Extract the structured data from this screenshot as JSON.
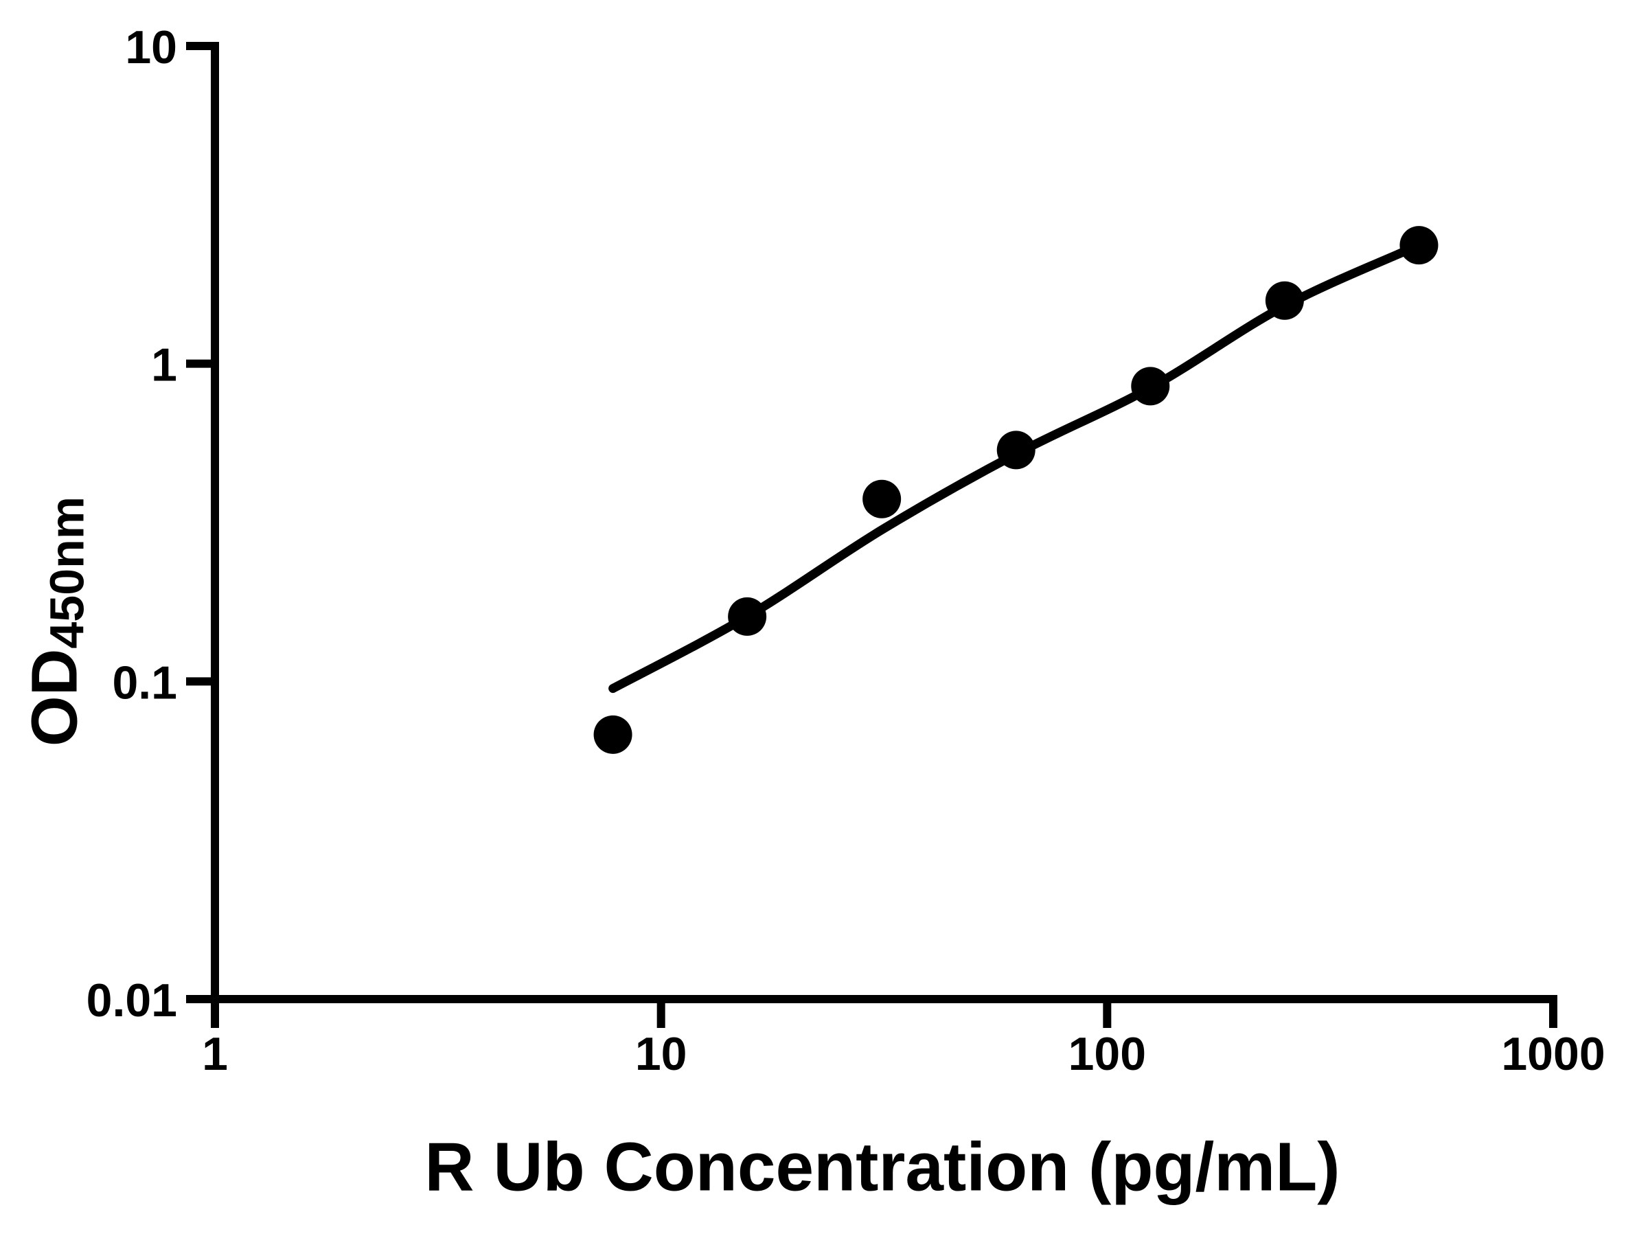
{
  "chart_data": {
    "type": "scatter",
    "title": "",
    "xlabel": "R Ub Concentration (pg/mL)",
    "ylabel_main": "OD",
    "ylabel_sub": "450nm",
    "x_scale": "log",
    "y_scale": "log",
    "xlim": [
      1,
      1000
    ],
    "ylim": [
      0.01,
      10
    ],
    "grid": false,
    "legend": false,
    "x_ticks": [
      {
        "value": 1,
        "label": "1"
      },
      {
        "value": 10,
        "label": "10"
      },
      {
        "value": 100,
        "label": "100"
      },
      {
        "value": 1000,
        "label": "1000"
      }
    ],
    "y_ticks": [
      {
        "value": 0.01,
        "label": "0.01"
      },
      {
        "value": 0.1,
        "label": "0.1"
      },
      {
        "value": 1,
        "label": "1"
      },
      {
        "value": 10,
        "label": "10"
      }
    ],
    "series": [
      {
        "name": "standard-points",
        "type": "scatter",
        "marker": "circle",
        "color": "#000000",
        "points": [
          {
            "x": 7.8,
            "y": 0.068
          },
          {
            "x": 15.6,
            "y": 0.16
          },
          {
            "x": 31.25,
            "y": 0.375
          },
          {
            "x": 62.5,
            "y": 0.535
          },
          {
            "x": 125,
            "y": 0.85
          },
          {
            "x": 250,
            "y": 1.58
          },
          {
            "x": 500,
            "y": 2.36
          }
        ]
      },
      {
        "name": "fit-curve",
        "type": "line",
        "color": "#000000",
        "points": [
          {
            "x": 7.8,
            "y": 0.095
          },
          {
            "x": 15.6,
            "y": 0.16
          },
          {
            "x": 31.25,
            "y": 0.3
          },
          {
            "x": 62.5,
            "y": 0.52
          },
          {
            "x": 125,
            "y": 0.84
          },
          {
            "x": 250,
            "y": 1.52
          },
          {
            "x": 500,
            "y": 2.36
          }
        ]
      }
    ],
    "colors": {
      "foreground": "#000000",
      "background": "#ffffff"
    }
  }
}
